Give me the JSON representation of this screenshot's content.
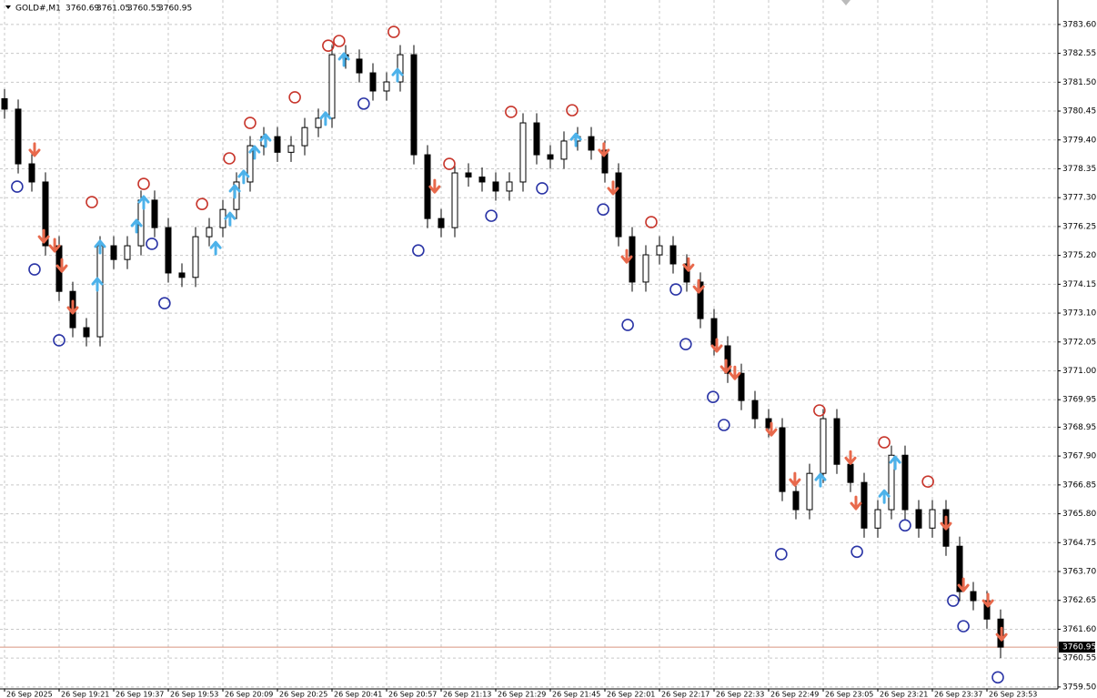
{
  "chart_data": {
    "type": "ohlc",
    "header": {
      "symbol": "GOLD#,M1",
      "open": 3760.69,
      "high": 3761.05,
      "low": 3760.55,
      "close": 3760.95
    },
    "x": [
      0,
      4,
      8,
      12,
      16,
      20,
      24,
      28,
      32,
      36,
      40,
      44,
      48,
      52,
      56,
      60,
      64,
      68,
      72,
      76,
      80,
      84,
      88,
      92,
      96,
      100,
      104,
      108,
      112,
      116,
      120,
      124,
      128,
      132,
      136,
      140,
      144,
      148,
      152,
      156,
      160,
      164,
      168,
      172,
      176,
      180,
      184,
      188,
      192,
      196,
      200,
      204,
      208,
      212,
      216,
      220,
      224,
      228,
      232,
      236,
      240,
      244,
      248,
      252,
      256,
      260,
      264,
      268,
      272,
      276,
      280,
      284,
      288,
      292
    ],
    "open": [
      3780.9,
      3780.52,
      3778.53,
      3777.87,
      3775.55,
      3773.89,
      3772.57,
      3772.24,
      3775.55,
      3775.05,
      3775.55,
      3777.21,
      3776.21,
      3774.56,
      3774.4,
      3775.88,
      3776.21,
      3776.87,
      3777.87,
      3779.19,
      3779.52,
      3778.95,
      3779.19,
      3779.85,
      3780.19,
      3782.5,
      3782.34,
      3781.84,
      3781.18,
      3781.51,
      3782.5,
      3778.86,
      3776.54,
      3776.21,
      3778.2,
      3778.05,
      3777.87,
      3777.54,
      3777.87,
      3780.02,
      3778.86,
      3778.7,
      3779.36,
      3779.52,
      3779.03,
      3778.2,
      3775.88,
      3774.23,
      3775.22,
      3775.55,
      3774.89,
      3774.23,
      3772.9,
      3771.91,
      3770.91,
      3769.92,
      3769.26,
      3768.93,
      3766.61,
      3765.95,
      3767.27,
      3769.26,
      3767.6,
      3766.94,
      3765.28,
      3765.95,
      3767.93,
      3765.95,
      3765.28,
      3765.95,
      3764.62,
      3762.97,
      3762.64,
      3761.97
    ],
    "high": [
      3781.25,
      3780.87,
      3778.88,
      3778.22,
      3775.9,
      3774.24,
      3772.92,
      3775.9,
      3775.9,
      3775.9,
      3777.56,
      3777.56,
      3776.56,
      3774.91,
      3776.23,
      3776.56,
      3777.22,
      3778.22,
      3779.54,
      3779.87,
      3779.87,
      3779.54,
      3780.2,
      3780.54,
      3782.85,
      3782.85,
      3782.69,
      3782.19,
      3781.86,
      3782.85,
      3782.85,
      3779.21,
      3776.89,
      3778.55,
      3778.55,
      3778.4,
      3778.22,
      3778.22,
      3780.37,
      3780.37,
      3779.21,
      3779.71,
      3779.87,
      3779.87,
      3779.38,
      3778.55,
      3776.23,
      3775.57,
      3775.9,
      3775.9,
      3775.24,
      3774.58,
      3773.25,
      3772.26,
      3771.26,
      3770.27,
      3769.61,
      3769.28,
      3766.96,
      3767.62,
      3769.61,
      3769.61,
      3767.95,
      3767.29,
      3766.3,
      3768.28,
      3768.28,
      3766.3,
      3766.3,
      3766.3,
      3764.97,
      3763.32,
      3762.99,
      3762.32
    ],
    "low": [
      3780.17,
      3778.18,
      3777.52,
      3775.2,
      3773.54,
      3772.22,
      3771.89,
      3771.89,
      3774.7,
      3774.7,
      3775.2,
      3775.86,
      3774.21,
      3774.05,
      3774.05,
      3775.53,
      3775.86,
      3776.52,
      3777.52,
      3778.84,
      3778.6,
      3778.6,
      3778.84,
      3779.5,
      3779.84,
      3781.99,
      3781.49,
      3780.83,
      3780.83,
      3781.16,
      3778.51,
      3776.19,
      3775.86,
      3775.86,
      3777.7,
      3777.52,
      3777.19,
      3777.19,
      3777.52,
      3778.51,
      3778.35,
      3778.35,
      3779.01,
      3778.68,
      3777.85,
      3775.53,
      3773.88,
      3773.88,
      3774.87,
      3774.54,
      3773.88,
      3772.55,
      3771.56,
      3770.56,
      3769.57,
      3768.91,
      3768.58,
      3766.26,
      3765.6,
      3765.6,
      3766.92,
      3767.25,
      3766.59,
      3764.93,
      3764.93,
      3765.6,
      3765.6,
      3764.93,
      3764.93,
      3764.27,
      3762.62,
      3762.29,
      3761.62,
      3760.55
    ],
    "close": [
      3780.52,
      3778.53,
      3777.87,
      3775.55,
      3773.89,
      3772.57,
      3772.24,
      3775.55,
      3775.05,
      3775.55,
      3777.21,
      3776.21,
      3774.56,
      3774.4,
      3775.88,
      3776.21,
      3776.87,
      3777.87,
      3779.19,
      3779.52,
      3778.95,
      3779.19,
      3779.85,
      3780.19,
      3782.5,
      3782.34,
      3781.84,
      3781.18,
      3781.51,
      3782.5,
      3778.86,
      3776.54,
      3776.21,
      3778.2,
      3778.05,
      3777.87,
      3777.54,
      3777.87,
      3780.02,
      3778.86,
      3778.7,
      3779.36,
      3779.52,
      3779.03,
      3778.2,
      3775.88,
      3774.23,
      3775.22,
      3775.55,
      3774.89,
      3774.23,
      3772.9,
      3771.91,
      3770.91,
      3769.92,
      3769.26,
      3768.93,
      3766.61,
      3765.95,
      3767.27,
      3769.26,
      3767.6,
      3766.94,
      3765.28,
      3765.95,
      3767.93,
      3765.95,
      3765.28,
      3765.95,
      3764.62,
      3762.97,
      3762.64,
      3761.97,
      3760.95
    ],
    "color": "#000000",
    "xlim": [
      -1.33,
      308.8
    ],
    "ylim": [
      3759.43,
      3784.49
    ],
    "xticks": [
      {
        "value": 0,
        "label": "26 Sep 2025"
      },
      {
        "value": 16,
        "label": "26 Sep 19:21"
      },
      {
        "value": 32,
        "label": "26 Sep 19:37"
      },
      {
        "value": 48,
        "label": "26 Sep 19:53"
      },
      {
        "value": 64,
        "label": "26 Sep 20:09"
      },
      {
        "value": 80,
        "label": "26 Sep 20:25"
      },
      {
        "value": 96,
        "label": "26 Sep 20:41"
      },
      {
        "value": 112,
        "label": "26 Sep 20:57"
      },
      {
        "value": 128,
        "label": "26 Sep 21:13"
      },
      {
        "value": 144,
        "label": "26 Sep 21:29"
      },
      {
        "value": 160,
        "label": "26 Sep 21:45"
      },
      {
        "value": 176,
        "label": "26 Sep 22:01"
      },
      {
        "value": 192,
        "label": "26 Sep 22:17"
      },
      {
        "value": 208,
        "label": "26 Sep 22:33"
      },
      {
        "value": 224,
        "label": "26 Sep 22:49"
      },
      {
        "value": 240,
        "label": "26 Sep 23:05"
      },
      {
        "value": 256,
        "label": "26 Sep 23:21"
      },
      {
        "value": 272,
        "label": "26 Sep 23:37"
      },
      {
        "value": 288,
        "label": "26 Sep 23:53"
      }
    ],
    "yticks": [
      {
        "value": 3783.6,
        "label": "3783.60"
      },
      3782.55,
      {
        "value": 3781.5,
        "label": "3781.50"
      },
      3780.45,
      {
        "value": 3779.4,
        "label": "3779.40"
      },
      3778.35,
      {
        "value": 3777.3,
        "label": "3777.30"
      },
      3776.25,
      {
        "value": 3775.2,
        "label": "3775.20"
      },
      3774.15,
      {
        "value": 3773.1,
        "label": "3773.10"
      },
      3772.05,
      {
        "value": 3771,
        "label": "3771.00"
      },
      3769.95,
      3768.95,
      {
        "value": 3767.9,
        "label": "3767.90"
      },
      3766.85,
      {
        "value": 3765.8,
        "label": "3765.80"
      },
      3764.75,
      {
        "value": 3763.7,
        "label": "3763.70"
      },
      3762.65,
      {
        "value": 3761.6,
        "label": "3761.60"
      },
      3760.55,
      {
        "value": 3759.5,
        "label": "3759.50"
      }
    ],
    "grid": true,
    "price_line": {
      "value": 3760.95,
      "color": "#d9957f"
    },
    "signals": [
      {
        "shape": "circle",
        "color": "#c8372d",
        "x": [
          25.6,
          40.8,
          57.9,
          65.9,
          72.0,
          85.1,
          94.9,
          98.1,
          114.1,
          130.4,
          148.5,
          166.4,
          189.6,
          238.9,
          257.9,
          270.7
        ],
        "values": [
          3777.14,
          3777.8,
          3777.07,
          3778.73,
          3780.02,
          3780.95,
          3782.83,
          3783.0,
          3783.33,
          3778.53,
          3780.42,
          3780.48,
          3776.41,
          3769.56,
          3768.4,
          3766.97
        ]
      },
      {
        "shape": "circle",
        "color": "#2b35a6",
        "x": [
          3.7,
          8.8,
          16.0,
          43.2,
          46.9,
          105.3,
          121.3,
          142.7,
          157.6,
          175.5,
          182.7,
          196.8,
          199.7,
          207.7,
          210.9,
          227.7,
          249.9,
          264.0,
          278.1,
          281.1,
          291.2
        ],
        "values": [
          3777.7,
          3774.69,
          3772.11,
          3775.62,
          3773.46,
          3780.72,
          3775.38,
          3776.64,
          3777.64,
          3776.87,
          3772.67,
          3773.96,
          3771.97,
          3770.05,
          3769.03,
          3764.33,
          3764.42,
          3765.38,
          3762.64,
          3761.71,
          3759.85
        ]
      },
      {
        "shape": "arrow-down",
        "color": "#e8694c",
        "x": [
          8.8,
          11.5,
          14.7,
          16.8,
          20.0,
          126.1,
          175.7,
          178.4,
          182.4,
          200.5,
          203.5,
          208.8,
          211.5,
          214.1,
          224.8,
          231.7,
          248.0,
          249.6,
          276.0,
          281.1,
          288.3,
          292.3
        ],
        "values": [
          3779.03,
          3775.88,
          3775.55,
          3774.82,
          3773.3,
          3777.7,
          3779.03,
          3777.64,
          3775.15,
          3774.85,
          3774.06,
          3771.91,
          3771.15,
          3770.91,
          3768.86,
          3767.04,
          3767.83,
          3766.18,
          3765.45,
          3763.2,
          3762.64,
          3761.41
        ]
      },
      {
        "shape": "arrow-up",
        "color": "#4db2ea",
        "x": [
          27.2,
          28.0,
          38.7,
          40.8,
          61.9,
          66.1,
          67.5,
          70.1,
          73.3,
          76.5,
          94.1,
          99.5,
          115.2,
          167.5,
          239.2,
          257.9,
          261.1
        ],
        "values": [
          3774.16,
          3775.52,
          3776.28,
          3777.14,
          3775.48,
          3776.54,
          3777.54,
          3778.07,
          3778.96,
          3779.39,
          3780.19,
          3782.34,
          3781.77,
          3779.42,
          3767.04,
          3766.44,
          3767.67
        ]
      }
    ]
  }
}
